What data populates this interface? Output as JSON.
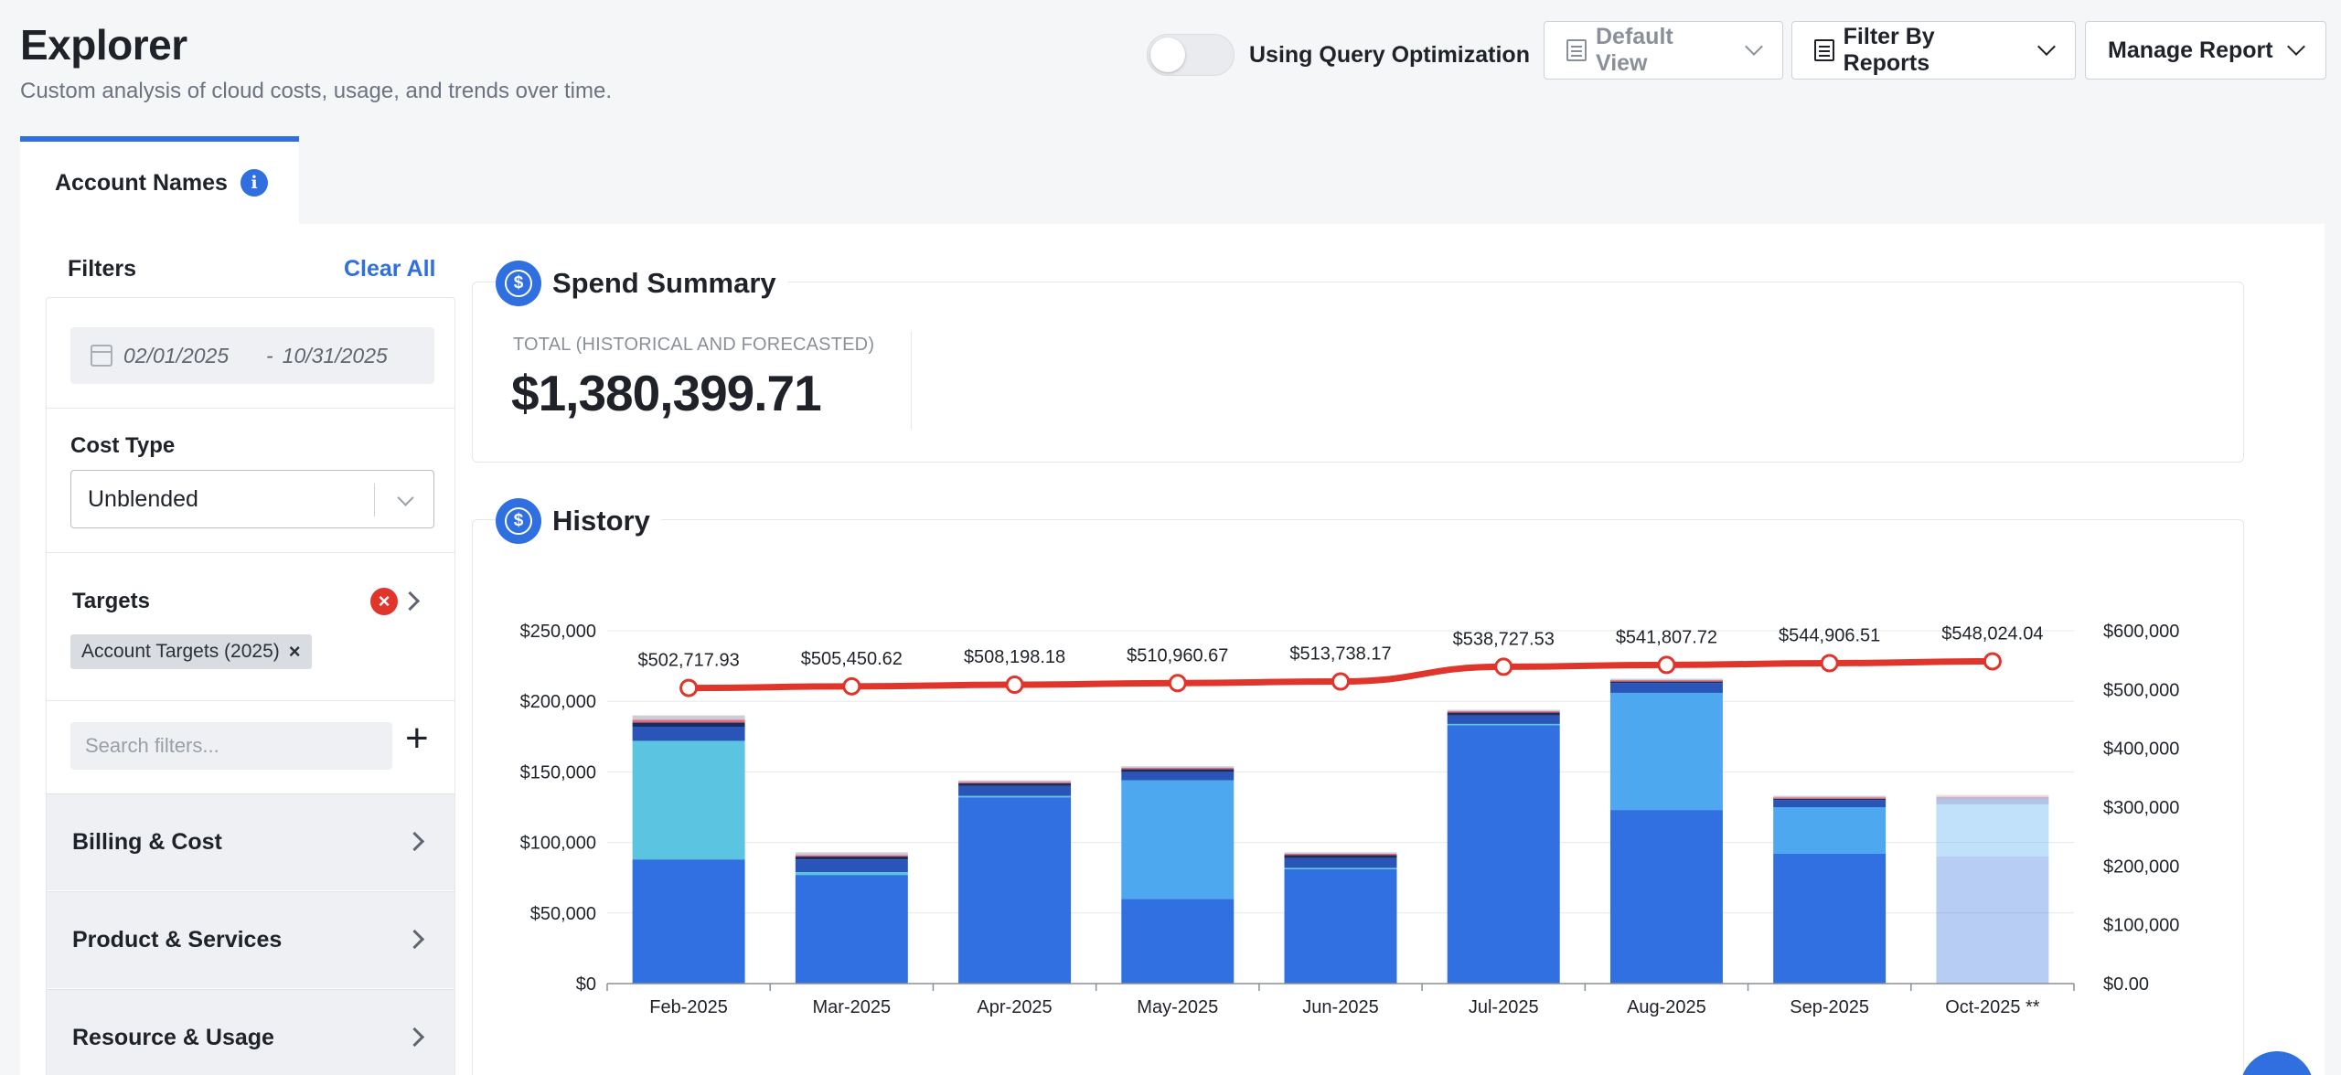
{
  "header": {
    "title": "Explorer",
    "subtitle": "Custom analysis of cloud costs, usage, and trends over time.",
    "toggle_label": "Using Query Optimization",
    "default_view_label": "Default View",
    "filter_reports_label": "Filter By Reports",
    "manage_report_label": "Manage Report"
  },
  "tab": {
    "label": "Account Names"
  },
  "filters": {
    "title": "Filters",
    "clear_all": "Clear All",
    "date_start": "02/01/2025",
    "date_sep": "-",
    "date_end": "10/31/2025",
    "cost_type_label": "Cost Type",
    "cost_type_value": "Unblended",
    "targets_label": "Targets",
    "target_chip": "Account Targets (2025)",
    "search_placeholder": "Search filters...",
    "sections": [
      "Billing & Cost",
      "Product & Services",
      "Resource & Usage"
    ]
  },
  "spend_summary": {
    "title": "Spend Summary",
    "total_label": "TOTAL (HISTORICAL AND FORECASTED)",
    "total_value": "$1,380,399.71"
  },
  "history": {
    "title": "History"
  },
  "chart_data": {
    "type": "bar",
    "categories": [
      "Feb-2025",
      "Mar-2025",
      "Apr-2025",
      "May-2025",
      "Jun-2025",
      "Jul-2025",
      "Aug-2025",
      "Sep-2025",
      "Oct-2025 **"
    ],
    "forecast_last": true,
    "left_ticks": [
      "$0",
      "$50,000",
      "$100,000",
      "$150,000",
      "$200,000",
      "$250,000"
    ],
    "right_ticks": [
      "$0.00",
      "$100,000",
      "$200,000",
      "$300,000",
      "$400,000",
      "$500,000",
      "$600,000"
    ],
    "ylim_left": [
      0,
      250000
    ],
    "ylim_right": [
      0,
      600000
    ],
    "series": [
      {
        "color": "#3170e0",
        "values": [
          88000,
          77000,
          132000,
          60000,
          81000,
          183000,
          123000,
          92000,
          90000
        ]
      },
      {
        "color": "#5ac4e1",
        "values": [
          84000,
          2000,
          1000,
          0,
          1000,
          1000,
          0,
          0,
          0
        ]
      },
      {
        "color": "#4da8f0",
        "values": [
          0,
          0,
          0,
          84000,
          0,
          0,
          83000,
          33000,
          37000
        ]
      },
      {
        "color": "#2955b8",
        "values": [
          10000,
          9000,
          7000,
          6000,
          7000,
          6000,
          7000,
          5000,
          4000
        ]
      },
      {
        "color": "#1a2b5e",
        "values": [
          3000,
          2000,
          2000,
          2000,
          2000,
          2000,
          1000,
          1000,
          1000
        ]
      },
      {
        "color": "#e36a7c",
        "values": [
          2000,
          1000,
          1000,
          1000,
          1000,
          1000,
          1000,
          1000,
          1000
        ]
      },
      {
        "color": "#c9cfd8",
        "values": [
          3000,
          2000,
          1000,
          1000,
          1000,
          1000,
          1000,
          1000,
          1000
        ]
      }
    ],
    "line": {
      "color": "#e0352b",
      "values": [
        502717.93,
        505450.62,
        508198.18,
        510960.67,
        513738.17,
        538727.53,
        541807.72,
        544906.51,
        548024.04
      ],
      "labels": [
        "$502,717.93",
        "$505,450.62",
        "$508,198.18",
        "$510,960.67",
        "$513,738.17",
        "$538,727.53",
        "$541,807.72",
        "$544,906.51",
        "$548,024.04"
      ]
    }
  }
}
